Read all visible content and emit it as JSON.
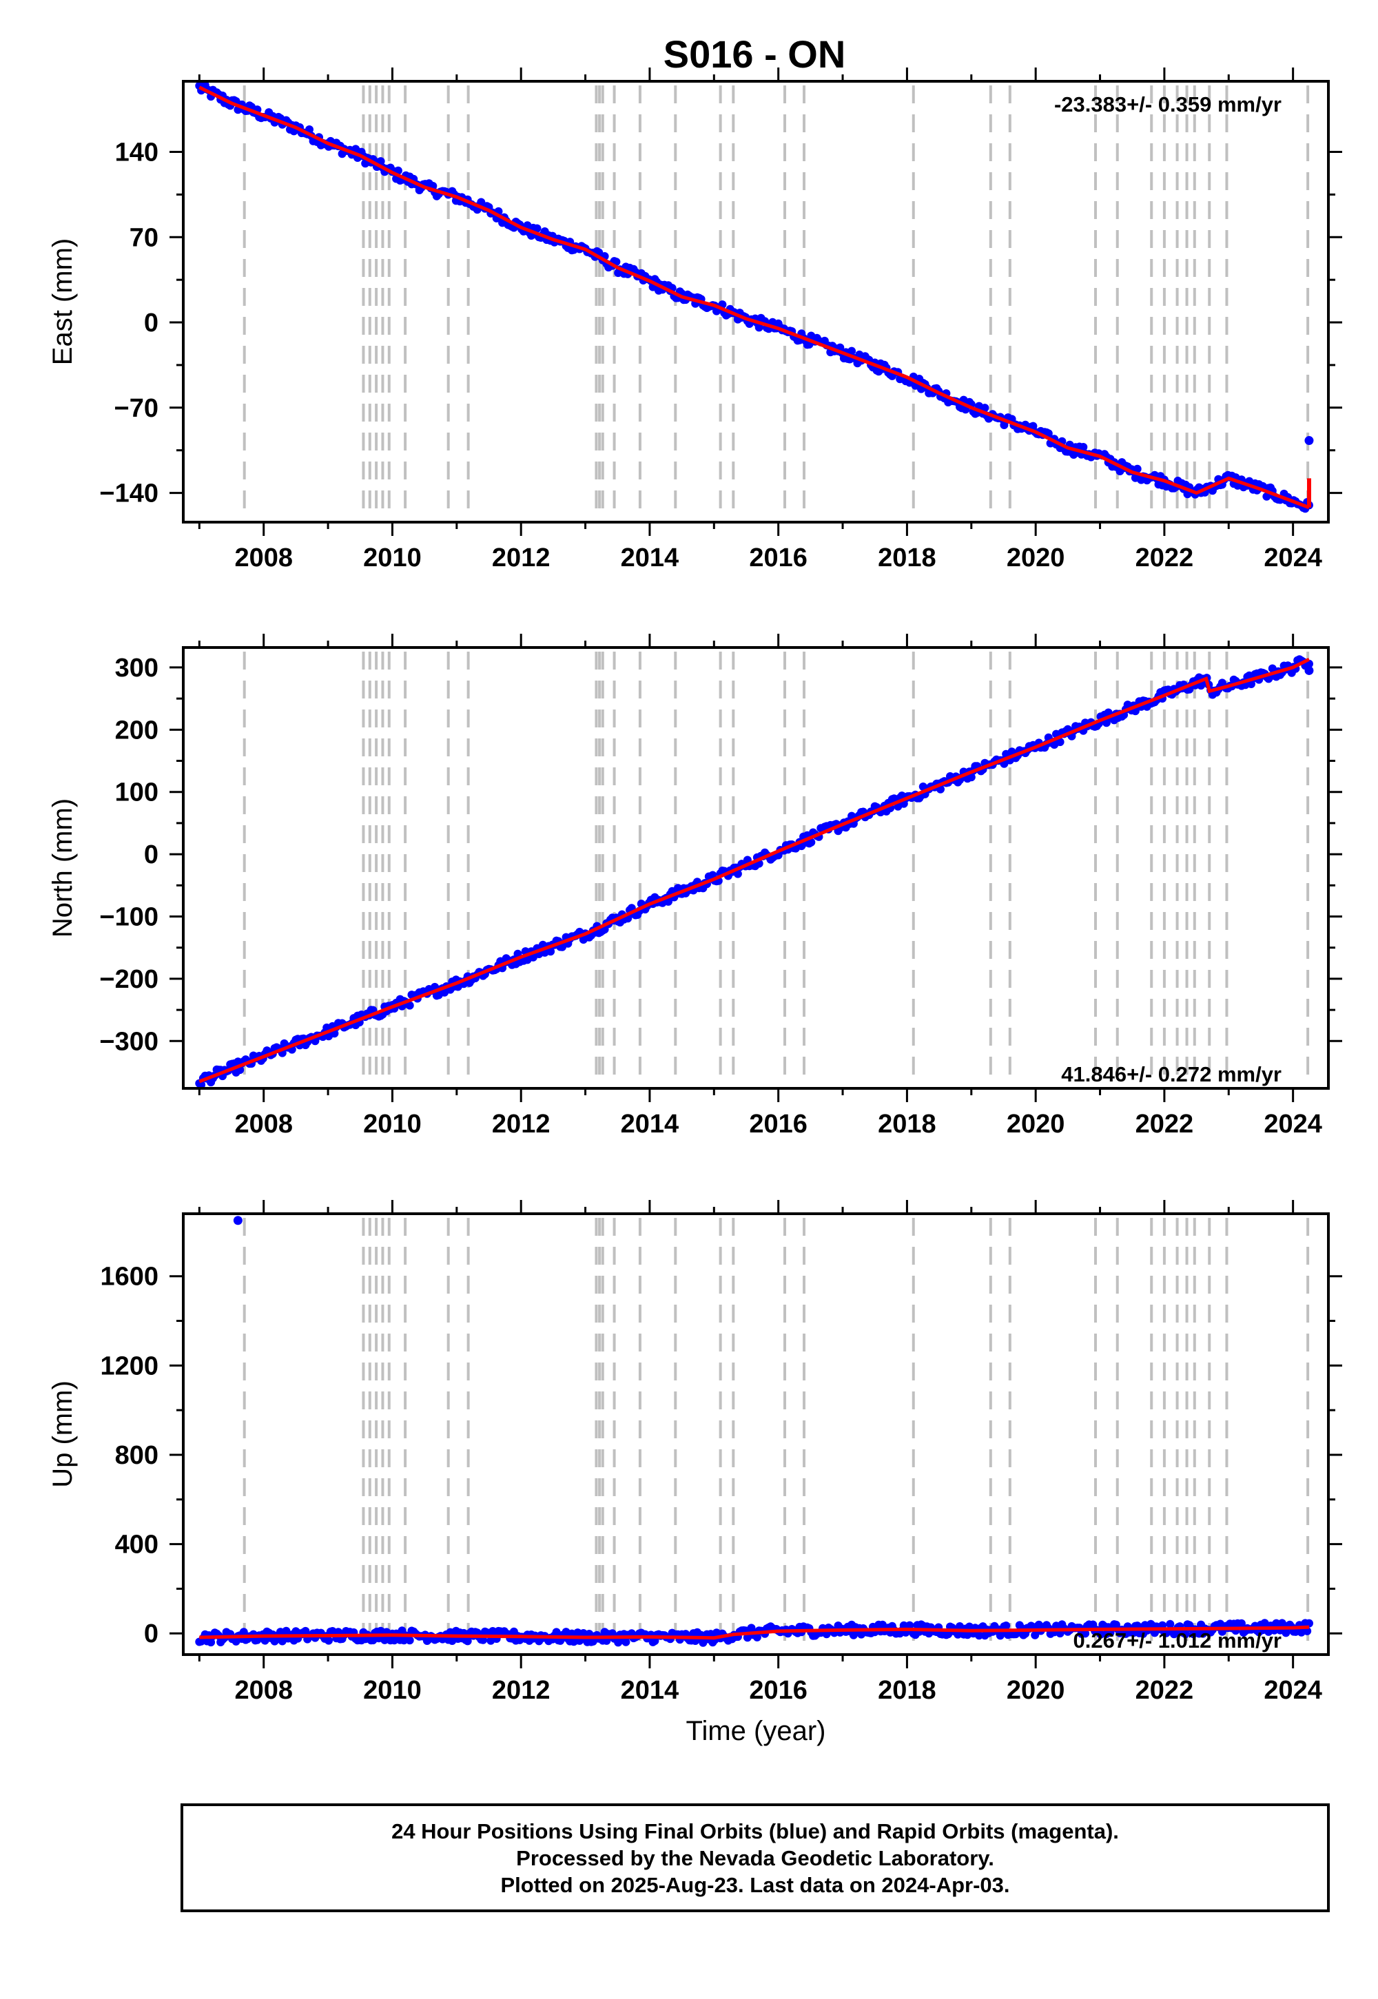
{
  "title": "S016 - ON",
  "colors": {
    "final_orbits": "#0000ff",
    "model_fit": "#ff0000",
    "event_lines": "#c0c0c0",
    "frame": "#000000"
  },
  "chart_data": [
    {
      "type": "scatter",
      "component": "east",
      "ylabel": "East (mm)",
      "xlabel": "",
      "xlim": [
        2006.75,
        2024.55
      ],
      "ylim": [
        -164,
        198
      ],
      "x_ticks": [
        2008,
        2010,
        2012,
        2014,
        2016,
        2018,
        2020,
        2022,
        2024
      ],
      "y_ticks": [
        -140,
        -70,
        0,
        70,
        140
      ],
      "rate_text": "-23.383+/- 0.359 mm/yr",
      "rate_position": "top-right",
      "offsets": [
        {
          "x": 2022.7,
          "dy": 5
        }
      ],
      "series": [
        {
          "x": [
            2007.0,
            2007.5,
            2008.0,
            2008.5,
            2009.0,
            2009.5,
            2010.0,
            2010.5,
            2011.0,
            2011.5,
            2012.0,
            2012.5,
            2013.0,
            2013.5,
            2014.0,
            2014.5,
            2015.0,
            2015.5,
            2016.0,
            2016.5,
            2017.0,
            2017.5,
            2018.0,
            2018.5,
            2019.0,
            2019.5,
            2020.0,
            2020.5,
            2021.0,
            2021.5,
            2022.0,
            2022.5,
            2023.0,
            2023.5,
            2024.0,
            2024.25
          ],
          "y": [
            193,
            180,
            170,
            160,
            147,
            137,
            123,
            111,
            103,
            92,
            78,
            68,
            60,
            45,
            34,
            21,
            14,
            3,
            -5,
            -15,
            -25,
            -35,
            -45,
            -58,
            -70,
            -80,
            -90,
            -103,
            -110,
            -123,
            -130,
            -140,
            -128,
            -137,
            -147,
            -152
          ]
        }
      ],
      "outliers": [
        {
          "x": 2024.25,
          "y": -97
        }
      ]
    },
    {
      "type": "scatter",
      "component": "north",
      "ylabel": "North (mm)",
      "xlabel": "",
      "xlim": [
        2006.75,
        2024.55
      ],
      "ylim": [
        -376,
        332
      ],
      "x_ticks": [
        2008,
        2010,
        2012,
        2014,
        2016,
        2018,
        2020,
        2022,
        2024
      ],
      "y_ticks": [
        -300,
        -200,
        -100,
        0,
        100,
        200,
        300
      ],
      "rate_text": "41.846+/- 0.272 mm/yr",
      "rate_position": "bottom-right",
      "offsets": [
        {
          "x": 2022.7,
          "dy": -20
        }
      ],
      "series": [
        {
          "x": [
            2007.0,
            2008.0,
            2009.0,
            2010.0,
            2011.0,
            2012.0,
            2013.0,
            2014.0,
            2015.0,
            2016.0,
            2017.0,
            2018.0,
            2019.0,
            2020.0,
            2021.0,
            2022.0,
            2022.65,
            2022.7,
            2023.0,
            2024.0,
            2024.25
          ],
          "y": [
            -365,
            -325,
            -285,
            -245,
            -207,
            -165,
            -128,
            -80,
            -40,
            5,
            48,
            90,
            132,
            172,
            215,
            255,
            282,
            262,
            270,
            300,
            313
          ]
        }
      ],
      "outliers": [
        {
          "x": 2024.25,
          "y": 295
        }
      ]
    },
    {
      "type": "scatter",
      "component": "up",
      "ylabel": "Up (mm)",
      "xlabel": "Time (year)",
      "xlim": [
        2006.75,
        2024.55
      ],
      "ylim": [
        -95,
        1880
      ],
      "x_ticks": [
        2008,
        2010,
        2012,
        2014,
        2016,
        2018,
        2020,
        2022,
        2024
      ],
      "y_ticks": [
        0,
        400,
        800,
        1200,
        1600
      ],
      "rate_text": "0.267+/- 1.012 mm/yr",
      "rate_position": "bottom-right",
      "offsets": [],
      "series": [
        {
          "x": [
            2007.0,
            2008.0,
            2009.0,
            2010.0,
            2011.0,
            2012.0,
            2013.0,
            2014.0,
            2015.0,
            2015.3,
            2016.0,
            2017.0,
            2018.0,
            2019.0,
            2020.0,
            2021.0,
            2022.0,
            2023.0,
            2024.0,
            2024.25
          ],
          "y": [
            -18,
            -12,
            -10,
            -8,
            -12,
            -14,
            -18,
            -16,
            -20,
            -5,
            10,
            15,
            18,
            12,
            15,
            18,
            20,
            22,
            25,
            28
          ]
        }
      ],
      "outliers": [
        {
          "x": 2007.6,
          "y": 1850
        }
      ]
    }
  ],
  "event_lines": [
    2007.7,
    2009.55,
    2009.65,
    2009.75,
    2009.85,
    2009.95,
    2010.2,
    2010.87,
    2011.18,
    2013.17,
    2013.22,
    2013.27,
    2013.45,
    2013.85,
    2014.4,
    2015.1,
    2015.3,
    2016.1,
    2016.4,
    2018.1,
    2019.3,
    2019.6,
    2020.93,
    2021.27,
    2021.8,
    2022.0,
    2022.2,
    2022.35,
    2022.47,
    2022.7,
    2022.97,
    2024.23
  ],
  "footer": {
    "line1": "24 Hour Positions Using Final Orbits (blue) and Rapid Orbits (magenta).",
    "line2": "Processed by the Nevada Geodetic Laboratory.",
    "line3": "Plotted on 2025-Aug-23. Last data on 2024-Apr-03."
  }
}
